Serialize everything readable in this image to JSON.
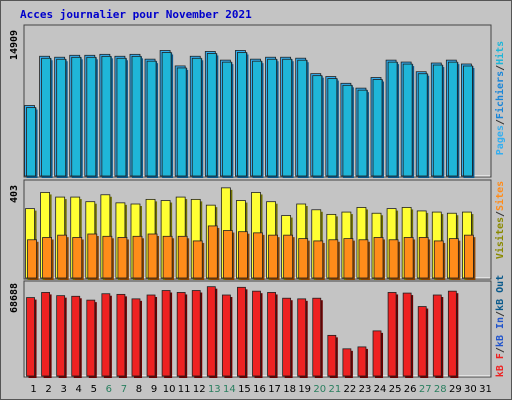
{
  "title": "Acces journalier pour November 2021",
  "colors": {
    "pages": "#34aef0",
    "pages_dark": "#0a5a8c",
    "hits": "#1fb6d8",
    "fichiers": "#1a86d8",
    "visites": "#ffff33",
    "visites_dark": "#8a8a00",
    "sites": "#ff8c1a",
    "sites_dark": "#8a4400",
    "kbin": "#ee2222",
    "kbin_dark": "#6a0000",
    "kbout": "#2255cc",
    "kbf": "#ee2222",
    "sep": "#333333",
    "weekday": "#000000",
    "weekend": "#2a7f5f"
  },
  "chart_data": [
    {
      "type": "bar",
      "ylabel_max": "14909",
      "ylim": [
        0,
        14909
      ],
      "legend": [
        "Pages",
        "Fichiers",
        "Hits"
      ],
      "categories": [
        "1",
        "2",
        "3",
        "4",
        "5",
        "6",
        "7",
        "8",
        "9",
        "10",
        "11",
        "12",
        "13",
        "14",
        "15",
        "16",
        "17",
        "18",
        "19",
        "20",
        "21",
        "22",
        "23",
        "24",
        "25",
        "26",
        "27",
        "28",
        "29",
        "30",
        "31"
      ],
      "weekend": [
        6,
        7,
        13,
        14,
        20,
        21,
        27,
        28
      ],
      "series": [
        {
          "name": "Hits",
          "values": [
            7400,
            12500,
            12400,
            12600,
            12600,
            12700,
            12500,
            12700,
            12200,
            13100,
            11500,
            12500,
            13000,
            12100,
            13100,
            12200,
            12400,
            12400,
            12300,
            10700,
            10400,
            9700,
            9200,
            10300,
            12100,
            11900,
            10900,
            11800,
            12100,
            11700,
            null
          ]
        },
        {
          "name": "Pages",
          "values": [
            7400,
            12500,
            12400,
            12600,
            12600,
            12700,
            12500,
            12700,
            12200,
            13100,
            11500,
            12500,
            13000,
            12100,
            13100,
            12200,
            12400,
            12400,
            12300,
            10700,
            10400,
            9700,
            9200,
            10300,
            12100,
            11900,
            10900,
            11800,
            12100,
            11700,
            null
          ]
        }
      ]
    },
    {
      "type": "bar",
      "ylabel_max": "403",
      "ylim": [
        0,
        403
      ],
      "legend": [
        "Visites",
        "Sites"
      ],
      "series": [
        {
          "name": "Visites",
          "values": [
            305,
            375,
            355,
            355,
            335,
            365,
            330,
            325,
            345,
            340,
            355,
            345,
            320,
            395,
            340,
            375,
            335,
            275,
            325,
            300,
            280,
            290,
            310,
            285,
            305,
            310,
            295,
            290,
            285,
            290,
            null
          ]
        },
        {
          "name": "Sites",
          "values": [
            170,
            180,
            190,
            180,
            195,
            185,
            180,
            185,
            195,
            185,
            185,
            165,
            230,
            210,
            205,
            200,
            190,
            190,
            175,
            165,
            170,
            175,
            170,
            180,
            170,
            180,
            180,
            165,
            175,
            190,
            null
          ]
        }
      ]
    },
    {
      "type": "bar",
      "ylabel_max": "68688",
      "ylim": [
        0,
        68688
      ],
      "legend": [
        "kB F",
        "kB In",
        "kB Out"
      ],
      "series": [
        {
          "name": "kB In",
          "values": [
            62000,
            66000,
            63500,
            63000,
            60000,
            65000,
            64500,
            61000,
            64000,
            67500,
            66000,
            67500,
            70500,
            64000,
            70000,
            67000,
            66000,
            61500,
            61000,
            61500,
            32500,
            22000,
            23500,
            36000,
            66000,
            65500,
            55000,
            64000,
            67000,
            null,
            null
          ]
        }
      ]
    }
  ],
  "xaxis": {
    "labels": [
      "1",
      "2",
      "3",
      "4",
      "5",
      "6",
      "7",
      "8",
      "9",
      "10",
      "11",
      "12",
      "13",
      "14",
      "15",
      "16",
      "17",
      "18",
      "19",
      "20",
      "21",
      "22",
      "23",
      "24",
      "25",
      "26",
      "27",
      "28",
      "29",
      "30",
      "31"
    ]
  },
  "right_labels": {
    "top": [
      {
        "text": "Pages",
        "color_key": "pages"
      },
      {
        "text": "/",
        "color_key": "sep"
      },
      {
        "text": "Fichiers",
        "color_key": "fichiers"
      },
      {
        "text": "/",
        "color_key": "sep"
      },
      {
        "text": "Hits",
        "color_key": "hits"
      }
    ],
    "mid": [
      {
        "text": "Visites",
        "color_key": "visites_dark"
      },
      {
        "text": "/",
        "color_key": "sep"
      },
      {
        "text": "Sites",
        "color_key": "sites"
      }
    ],
    "bot": [
      {
        "text": "kB F",
        "color_key": "kbf"
      },
      {
        "text": "/",
        "color_key": "sep"
      },
      {
        "text": "kB In",
        "color_key": "kbout"
      },
      {
        "text": "/",
        "color_key": "sep"
      },
      {
        "text": "kB Out",
        "color_key": "pages_dark"
      }
    ]
  }
}
